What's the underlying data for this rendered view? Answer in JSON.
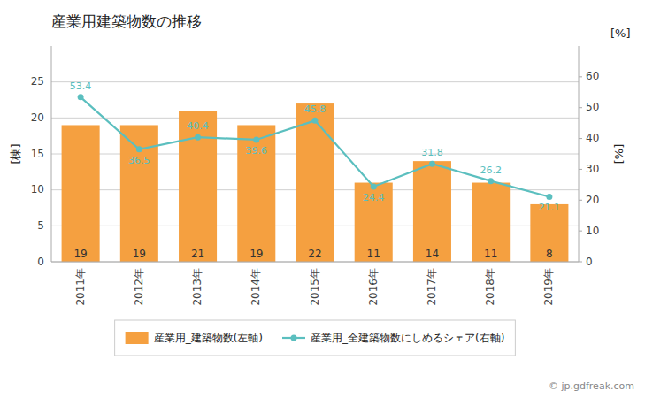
{
  "chart_data": {
    "type": "bar",
    "title": "産業用建築物数の推移",
    "ylabel": "[棟]",
    "y2label": "[%]",
    "categories": [
      "2011年",
      "2012年",
      "2013年",
      "2014年",
      "2015年",
      "2016年",
      "2017年",
      "2018年",
      "2019年"
    ],
    "series": [
      {
        "name": "産業用_建築物数(左軸)",
        "type": "bar",
        "color": "#f5a040",
        "values": [
          19,
          19,
          21,
          19,
          22,
          11,
          14,
          11,
          8
        ],
        "data_labels": true
      },
      {
        "name": "産業用_全建築物数にしめるシェア(右軸)",
        "type": "line",
        "axis": "y2",
        "color": "#5bbfbf",
        "marker": "circle",
        "values": [
          53.4,
          36.5,
          40.4,
          39.6,
          45.8,
          24.4,
          31.8,
          26.2,
          21.1
        ],
        "data_labels": true
      }
    ],
    "ylim": [
      0,
      30
    ],
    "yticks": [
      0,
      5,
      10,
      15,
      20,
      25
    ],
    "y2lim": [
      0,
      70
    ],
    "y2ticks": [
      0,
      10,
      20,
      30,
      40,
      50,
      60
    ],
    "grid": true,
    "legend": "bottom",
    "annotations": [
      "[%]",
      "© jp.gdfreak.com"
    ]
  }
}
